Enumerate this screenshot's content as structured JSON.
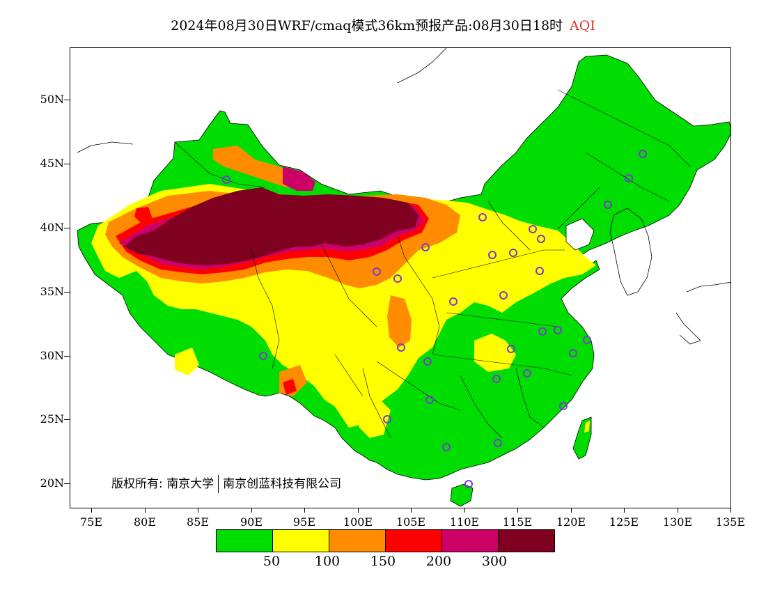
{
  "title": {
    "main": "2024年08月30日WRF/cmaq模式36km预报产品:08月30日18时",
    "variable": "AQI"
  },
  "axes": {
    "lat_labels": [
      "50N",
      "45N",
      "40N",
      "35N",
      "30N",
      "25N",
      "20N"
    ],
    "lon_labels": [
      "75E",
      "80E",
      "85E",
      "90E",
      "95E",
      "100E",
      "105E",
      "110E",
      "115E",
      "120E",
      "125E",
      "130E",
      "135E"
    ]
  },
  "copyright": {
    "prefix": "版权所有:",
    "org1": "南京大学",
    "org2": "南京创蓝科技有限公司"
  },
  "legend": {
    "colors": [
      "#00dd00",
      "#ffff00",
      "#ff8c00",
      "#ff0000",
      "#cc0066",
      "#800020"
    ],
    "labels": [
      "50",
      "100",
      "150",
      "200",
      "300"
    ]
  },
  "map": {
    "region": "China",
    "lon_range": [
      73,
      135
    ],
    "lat_range": [
      18,
      54
    ],
    "colors": {
      "good": "#00dd00",
      "moderate": "#ffff00",
      "unhealthy_sensitive": "#ff8c00",
      "unhealthy": "#ff0000",
      "very_unhealthy": "#cc0066",
      "hazardous": "#800020",
      "station_marker": "#7a3ccc"
    }
  }
}
